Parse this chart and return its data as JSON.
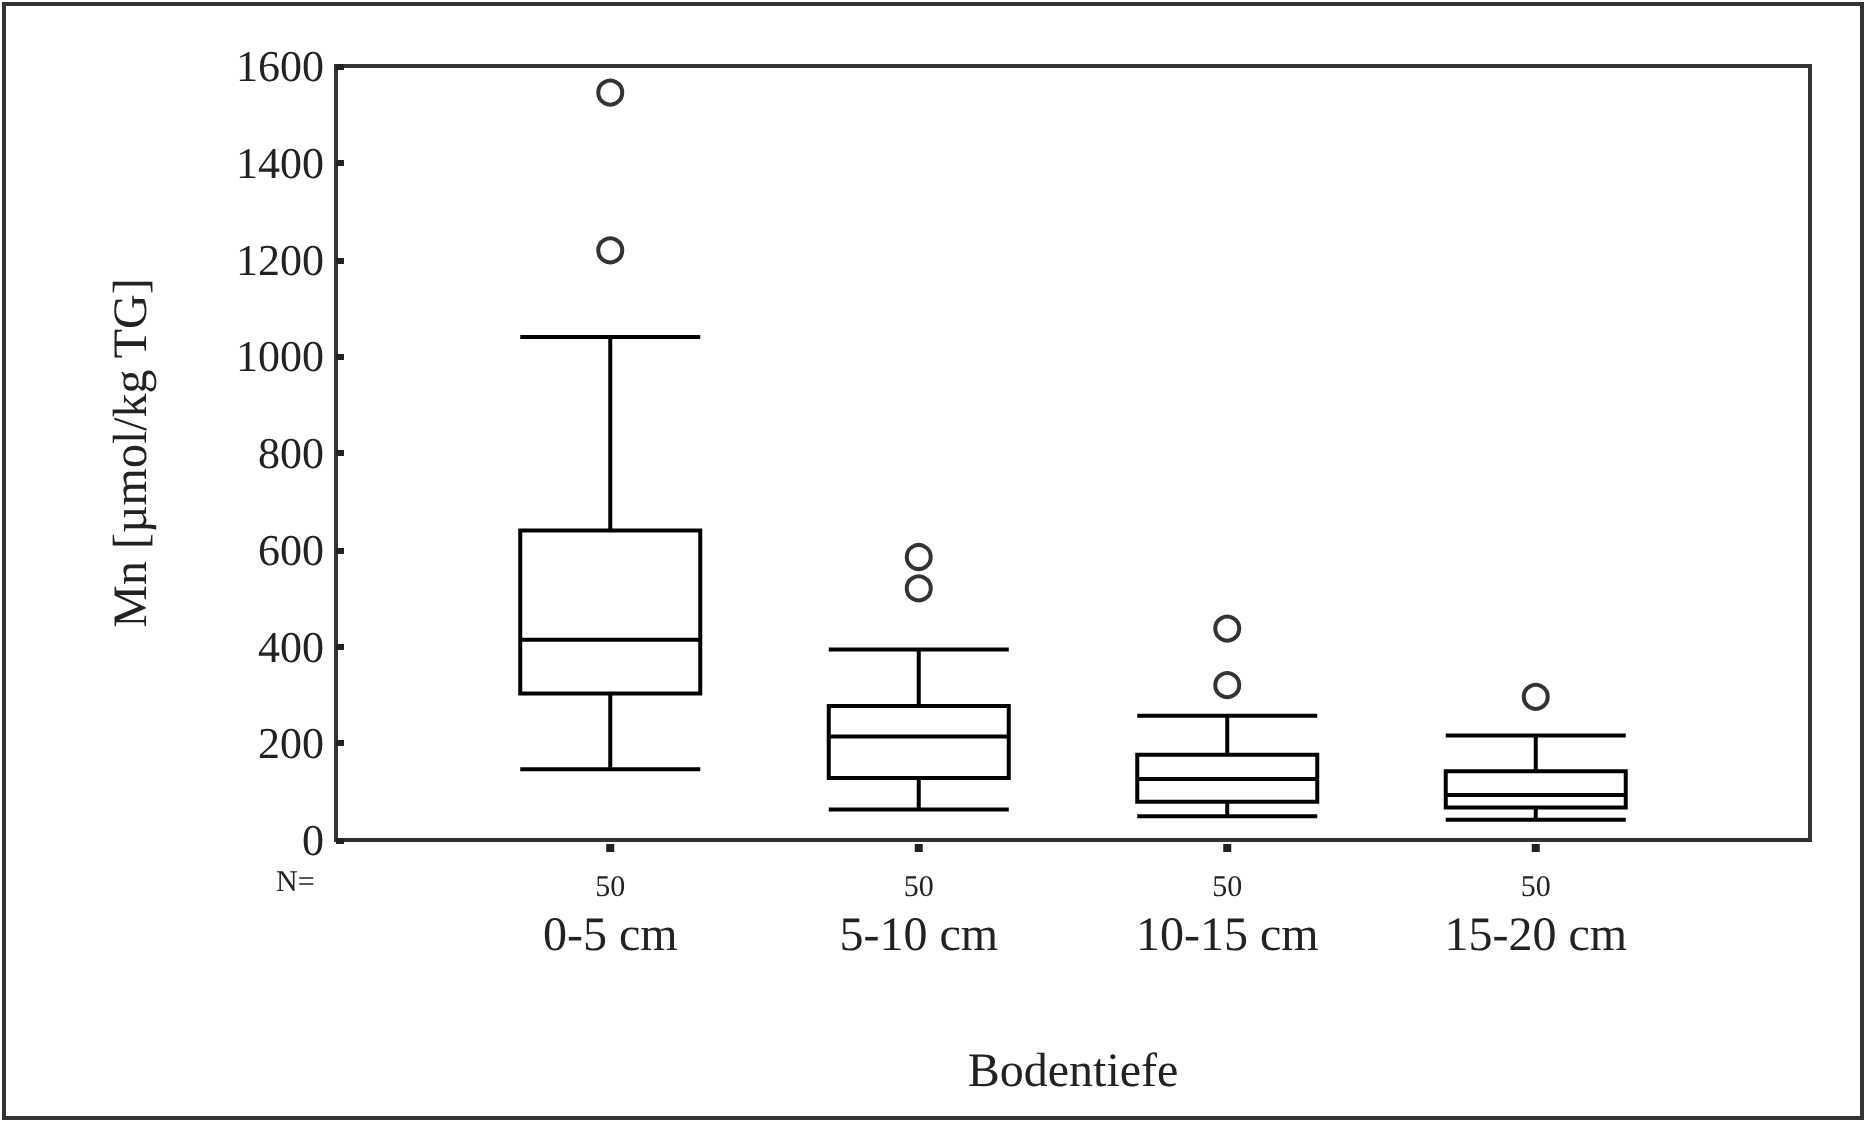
{
  "chart_data": {
    "type": "box",
    "xlabel": "Bodentiefe",
    "ylabel": "Mn [µmol/kg TG]",
    "categories": [
      "0-5 cm",
      "5-10 cm",
      "10-15 cm",
      "15-20 cm"
    ],
    "color": "#000000",
    "boxes": [
      {
        "low": 146,
        "q1": 303,
        "median": 414,
        "q3": 640,
        "high": 1040,
        "outliers": [
          1219,
          1545
        ]
      },
      {
        "low": 63,
        "q1": 128,
        "median": 214,
        "q3": 277,
        "high": 394,
        "outliers": [
          520,
          585
        ]
      },
      {
        "low": 49,
        "q1": 79,
        "median": 126,
        "q3": 176,
        "high": 257,
        "outliers": [
          320,
          437
        ]
      },
      {
        "low": 42,
        "q1": 67,
        "median": 93,
        "q3": 142,
        "high": 216,
        "outliers": [
          296
        ]
      }
    ],
    "marker": "circle",
    "ylim": [
      0,
      1600
    ],
    "yticks": [
      0,
      200,
      400,
      600,
      800,
      1000,
      1200,
      1400,
      1600
    ],
    "annotations": [
      "N=",
      "50",
      "50",
      "50",
      "50"
    ]
  }
}
